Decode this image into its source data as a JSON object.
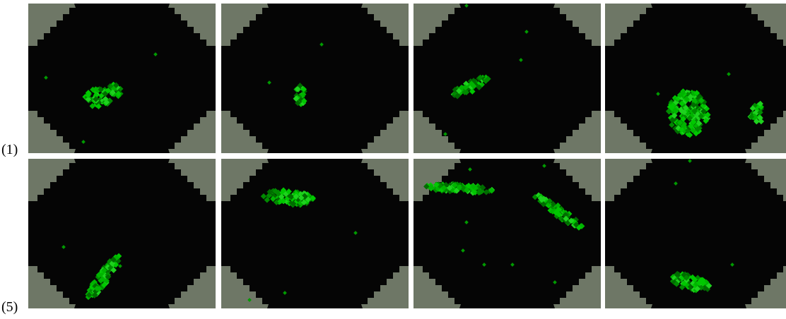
{
  "figure": {
    "row_labels": [
      "(1)",
      "(5)"
    ]
  }
}
